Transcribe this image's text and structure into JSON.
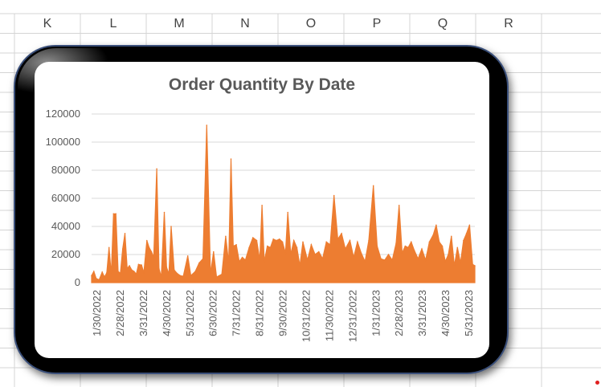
{
  "spreadsheet": {
    "columns": [
      "K",
      "L",
      "M",
      "N",
      "O",
      "P",
      "Q",
      "R"
    ]
  },
  "colors": {
    "series": "#ED7D31",
    "frame": "#000000",
    "frame_border": "#3A4F7A",
    "gridline": "#D9D9D9",
    "cell_grid": "#D4D4D4",
    "title": "#595959",
    "tick_label": "#595959"
  },
  "chart_data": {
    "type": "area",
    "title": "Order Quantity By Date",
    "xlabel": "",
    "ylabel": "",
    "ylim": [
      0,
      120000
    ],
    "y_ticks": [
      0,
      20000,
      40000,
      60000,
      80000,
      100000,
      120000
    ],
    "x_tick_labels": [
      "1/30/2022",
      "2/28/2022",
      "3/31/2022",
      "4/30/2022",
      "5/31/2022",
      "6/30/2022",
      "7/31/2022",
      "8/31/2022",
      "9/30/2022",
      "10/31/2022",
      "11/30/2022",
      "12/31/2022",
      "1/31/2023",
      "2/28/2023",
      "3/31/2023",
      "4/30/2023",
      "5/31/2023"
    ],
    "x_range": [
      "2022-01-24",
      "2023-06-14"
    ],
    "grid": true,
    "legend": "none",
    "series": [
      {
        "values_by_date": [
          [
            "2022-01-24",
            5000
          ],
          [
            "2022-01-27",
            8000
          ],
          [
            "2022-01-30",
            3000
          ],
          [
            "2022-02-03",
            2000
          ],
          [
            "2022-02-07",
            7500
          ],
          [
            "2022-02-10",
            4000
          ],
          [
            "2022-02-13",
            7000
          ],
          [
            "2022-02-16",
            25000
          ],
          [
            "2022-02-19",
            6000
          ],
          [
            "2022-02-22",
            49000
          ],
          [
            "2022-02-25",
            49000
          ],
          [
            "2022-02-28",
            8000
          ],
          [
            "2022-03-03",
            6500
          ],
          [
            "2022-03-06",
            24000
          ],
          [
            "2022-03-09",
            35000
          ],
          [
            "2022-03-12",
            10000
          ],
          [
            "2022-03-15",
            12000
          ],
          [
            "2022-03-18",
            9000
          ],
          [
            "2022-03-21",
            8000
          ],
          [
            "2022-03-24",
            6000
          ],
          [
            "2022-03-27",
            13000
          ],
          [
            "2022-03-31",
            12500
          ],
          [
            "2022-04-03",
            7000
          ],
          [
            "2022-04-07",
            30000
          ],
          [
            "2022-04-10",
            25000
          ],
          [
            "2022-04-13",
            22000
          ],
          [
            "2022-04-16",
            18000
          ],
          [
            "2022-04-20",
            81000
          ],
          [
            "2022-04-23",
            10000
          ],
          [
            "2022-04-26",
            4000
          ],
          [
            "2022-04-30",
            50000
          ],
          [
            "2022-05-03",
            11000
          ],
          [
            "2022-05-06",
            6000
          ],
          [
            "2022-05-09",
            40000
          ],
          [
            "2022-05-13",
            9000
          ],
          [
            "2022-05-17",
            6500
          ],
          [
            "2022-05-21",
            5000
          ],
          [
            "2022-05-25",
            4500
          ],
          [
            "2022-05-31",
            19000
          ],
          [
            "2022-06-04",
            5000
          ],
          [
            "2022-06-10",
            8000
          ],
          [
            "2022-06-15",
            14000
          ],
          [
            "2022-06-20",
            17000
          ],
          [
            "2022-06-25",
            112000
          ],
          [
            "2022-06-30",
            6000
          ],
          [
            "2022-07-04",
            22000
          ],
          [
            "2022-07-08",
            4000
          ],
          [
            "2022-07-15",
            6000
          ],
          [
            "2022-07-20",
            33000
          ],
          [
            "2022-07-24",
            14000
          ],
          [
            "2022-07-27",
            88000
          ],
          [
            "2022-07-30",
            26000
          ],
          [
            "2022-08-03",
            27000
          ],
          [
            "2022-08-07",
            15000
          ],
          [
            "2022-08-11",
            18000
          ],
          [
            "2022-08-15",
            16000
          ],
          [
            "2022-08-20",
            25000
          ],
          [
            "2022-08-25",
            32000
          ],
          [
            "2022-08-30",
            30000
          ],
          [
            "2022-09-03",
            16000
          ],
          [
            "2022-09-06",
            55000
          ],
          [
            "2022-09-09",
            15000
          ],
          [
            "2022-09-13",
            26000
          ],
          [
            "2022-09-17",
            25000
          ],
          [
            "2022-09-21",
            31000
          ],
          [
            "2022-09-25",
            30000
          ],
          [
            "2022-09-29",
            31000
          ],
          [
            "2022-10-03",
            29000
          ],
          [
            "2022-10-07",
            21000
          ],
          [
            "2022-10-10",
            50000
          ],
          [
            "2022-10-14",
            20000
          ],
          [
            "2022-10-18",
            30000
          ],
          [
            "2022-10-22",
            25000
          ],
          [
            "2022-10-26",
            12000
          ],
          [
            "2022-10-30",
            29000
          ],
          [
            "2022-11-05",
            16000
          ],
          [
            "2022-11-10",
            27000
          ],
          [
            "2022-11-15",
            20000
          ],
          [
            "2022-11-20",
            22000
          ],
          [
            "2022-11-25",
            17000
          ],
          [
            "2022-11-30",
            29000
          ],
          [
            "2022-12-05",
            27000
          ],
          [
            "2022-12-10",
            62000
          ],
          [
            "2022-12-15",
            31000
          ],
          [
            "2022-12-20",
            35000
          ],
          [
            "2022-12-25",
            24000
          ],
          [
            "2022-12-31",
            30000
          ],
          [
            "2023-01-05",
            18000
          ],
          [
            "2023-01-10",
            29000
          ],
          [
            "2023-01-15",
            21000
          ],
          [
            "2023-01-20",
            15000
          ],
          [
            "2023-01-25",
            30000
          ],
          [
            "2023-01-31",
            69000
          ],
          [
            "2023-02-05",
            26000
          ],
          [
            "2023-02-10",
            17000
          ],
          [
            "2023-02-15",
            16000
          ],
          [
            "2023-02-20",
            20000
          ],
          [
            "2023-02-25",
            16000
          ],
          [
            "2023-03-02",
            28000
          ],
          [
            "2023-03-06",
            55000
          ],
          [
            "2023-03-10",
            21000
          ],
          [
            "2023-03-14",
            26000
          ],
          [
            "2023-03-18",
            25000
          ],
          [
            "2023-03-22",
            29000
          ],
          [
            "2023-03-26",
            23000
          ],
          [
            "2023-03-31",
            17000
          ],
          [
            "2023-04-05",
            24000
          ],
          [
            "2023-04-10",
            16000
          ],
          [
            "2023-04-15",
            29000
          ],
          [
            "2023-04-20",
            34000
          ],
          [
            "2023-04-24",
            41000
          ],
          [
            "2023-04-28",
            29000
          ],
          [
            "2023-05-02",
            26000
          ],
          [
            "2023-05-06",
            15000
          ],
          [
            "2023-05-10",
            20000
          ],
          [
            "2023-05-14",
            33000
          ],
          [
            "2023-05-18",
            12000
          ],
          [
            "2023-05-22",
            25000
          ],
          [
            "2023-05-26",
            14000
          ],
          [
            "2023-05-30",
            30000
          ],
          [
            "2023-06-03",
            35000
          ],
          [
            "2023-06-07",
            41000
          ],
          [
            "2023-06-11",
            13000
          ],
          [
            "2023-06-14",
            12000
          ]
        ]
      }
    ]
  }
}
